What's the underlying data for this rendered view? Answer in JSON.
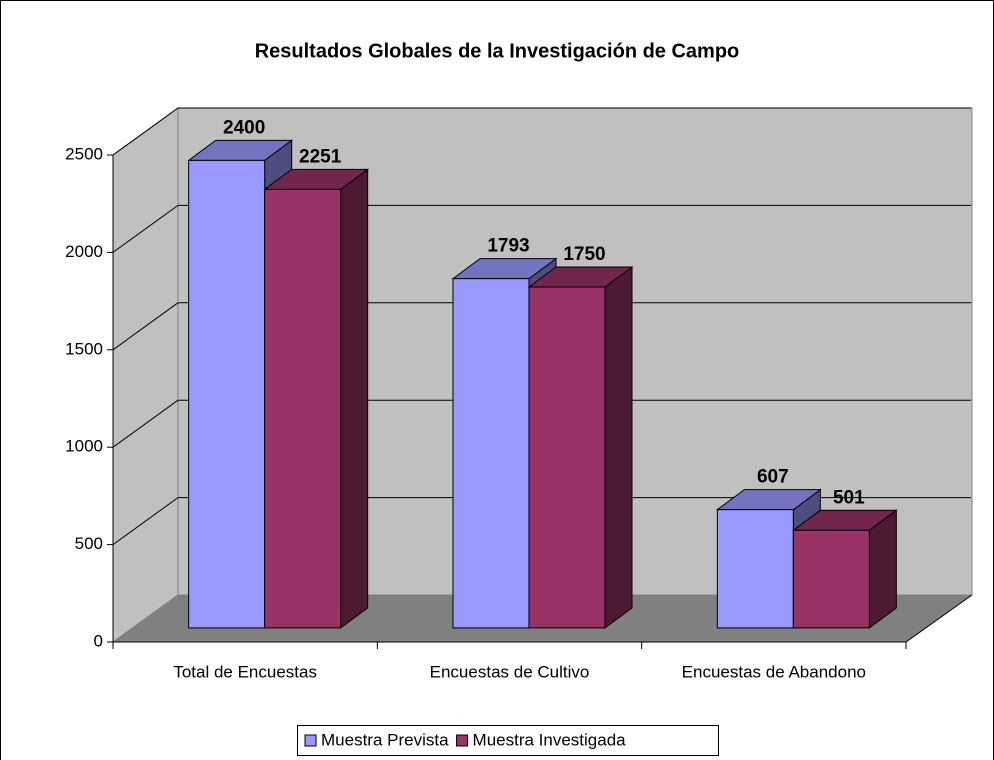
{
  "chart_data": {
    "type": "bar3d",
    "title": "Resultados Globales de la Investigación  de Campo",
    "categories": [
      "Total de Encuestas",
      "Encuestas de Cultivo",
      "Encuestas de Abandono"
    ],
    "series": [
      {
        "name": "Muestra Prevista",
        "color": "#9999ff",
        "values": [
          2400,
          1793,
          607
        ]
      },
      {
        "name": "Muestra Investigada",
        "color": "#993366",
        "values": [
          2251,
          1750,
          501
        ]
      }
    ],
    "ylim": [
      0,
      2500
    ],
    "yticks": [
      0,
      500,
      1000,
      1500,
      2000,
      2500
    ],
    "grid": true,
    "legend": "bottom"
  }
}
